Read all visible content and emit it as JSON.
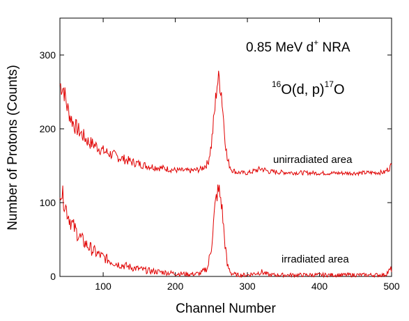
{
  "chart_data": {
    "type": "line",
    "xlabel": "Channel Number",
    "ylabel": "Number of Protons (Counts)",
    "xlim": [
      40,
      500
    ],
    "ylim": [
      0,
      350
    ],
    "xticks": [
      100,
      200,
      300,
      400,
      500
    ],
    "yticks": [
      0,
      100,
      200,
      300
    ],
    "grid": false,
    "line_color": "#e00000",
    "annotations": {
      "title_main": "0.85 MeV d",
      "title_sup": "+",
      "title_tail": " NRA",
      "reaction_sup1": "16",
      "reaction_mid": "O(d, p)",
      "reaction_sup2": "17",
      "reaction_tail": "O"
    },
    "series": [
      {
        "label": "unirradiated area",
        "x": [
          40,
          45,
          50,
          55,
          60,
          70,
          80,
          90,
          100,
          110,
          120,
          140,
          160,
          180,
          200,
          220,
          235,
          245,
          250,
          255,
          258,
          261,
          264,
          268,
          272,
          278,
          285,
          300,
          320,
          330,
          350,
          400,
          450,
          490,
          500
        ],
        "y": [
          260,
          255,
          230,
          215,
          205,
          193,
          182,
          177,
          170,
          166,
          162,
          155,
          150,
          147,
          144,
          143,
          145,
          153,
          178,
          228,
          262,
          268,
          250,
          200,
          158,
          145,
          141,
          140,
          146,
          142,
          141,
          140,
          140,
          141,
          150
        ]
      },
      {
        "label": "irradiated area",
        "x": [
          40,
          45,
          50,
          55,
          60,
          70,
          80,
          90,
          100,
          110,
          120,
          140,
          160,
          180,
          200,
          220,
          235,
          245,
          250,
          255,
          258,
          261,
          264,
          268,
          272,
          278,
          285,
          300,
          320,
          330,
          350,
          400,
          450,
          490,
          500
        ],
        "y": [
          122,
          105,
          88,
          75,
          65,
          50,
          40,
          32,
          26,
          21,
          17,
          12,
          8,
          6,
          4,
          3,
          4,
          12,
          40,
          92,
          113,
          115,
          100,
          55,
          15,
          4,
          2,
          2,
          6,
          2,
          2,
          2,
          2,
          2,
          10
        ]
      }
    ]
  }
}
